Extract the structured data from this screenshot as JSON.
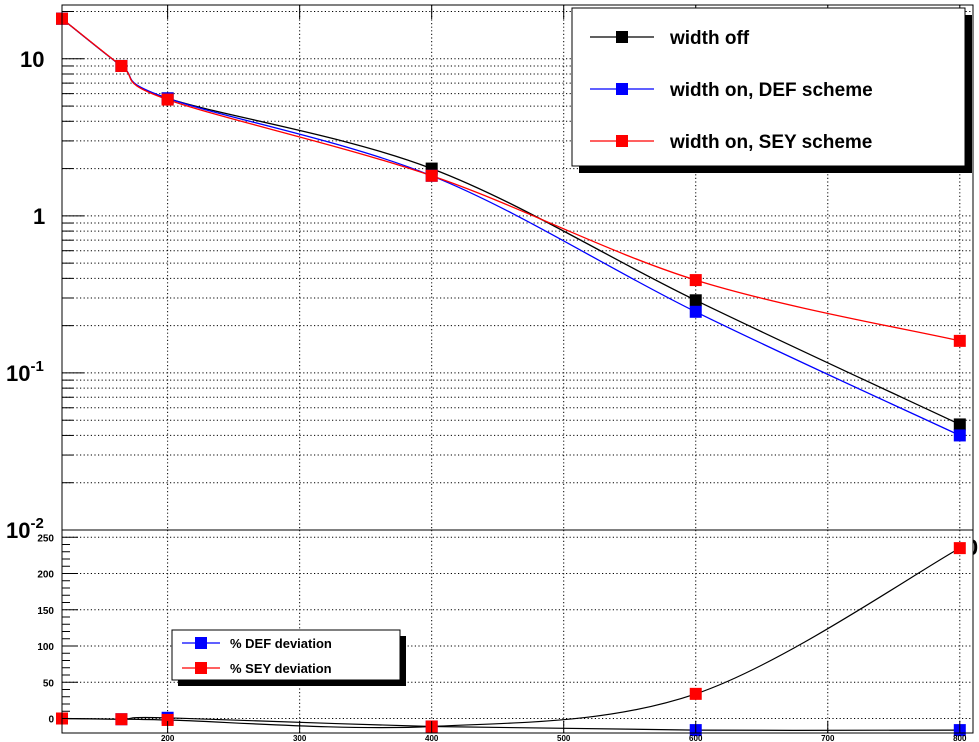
{
  "chart_data": [
    {
      "type": "line",
      "y_scale": "log",
      "xlim": [
        120,
        810
      ],
      "ylim": [
        0.01,
        22
      ],
      "grid": true,
      "legend_position": "top-right",
      "x_tick_labels": [
        "200",
        "300",
        "400",
        "500",
        "600",
        "700",
        "800"
      ],
      "y_tick_labels": [
        {
          "value": 10,
          "base": "10",
          "exp": ""
        },
        {
          "value": 1,
          "base": "1",
          "exp": ""
        },
        {
          "value": 0.1,
          "base": "10",
          "exp": "-1"
        },
        {
          "value": 0.01,
          "base": "10",
          "exp": "-2"
        }
      ],
      "x": [
        120,
        165,
        200,
        400,
        600,
        800
      ],
      "series": [
        {
          "name": "width off",
          "color": "#000000",
          "values": [
            18,
            9.0,
            5.6,
            2.0,
            0.29,
            0.047
          ]
        },
        {
          "name": "width on, DEF scheme",
          "color": "#0000ff",
          "values": [
            18,
            9.0,
            5.6,
            1.8,
            0.245,
            0.04
          ]
        },
        {
          "name": "width on, SEY scheme",
          "color": "#ff0000",
          "values": [
            18,
            9.0,
            5.5,
            1.8,
            0.39,
            0.16
          ]
        }
      ]
    },
    {
      "type": "line",
      "xlim": [
        120,
        810
      ],
      "ylim": [
        -20,
        260
      ],
      "grid": true,
      "legend_position": "middle-left",
      "x_tick_labels": [
        "200",
        "300",
        "400",
        "500",
        "600",
        "700",
        "800"
      ],
      "y_tick_labels": [
        "0",
        "50",
        "100",
        "150",
        "200",
        "250"
      ],
      "y_ticks": [
        0,
        50,
        100,
        150,
        200,
        250
      ],
      "x": [
        120,
        165,
        200,
        400,
        600,
        800
      ],
      "series": [
        {
          "name": "% DEF deviation",
          "color": "#0000ff",
          "values": [
            0,
            -1,
            1,
            -11,
            -16,
            -16
          ]
        },
        {
          "name": "% SEY deviation",
          "color": "#ff0000",
          "values": [
            0,
            -1,
            -2,
            -11,
            34,
            235
          ]
        }
      ]
    }
  ]
}
